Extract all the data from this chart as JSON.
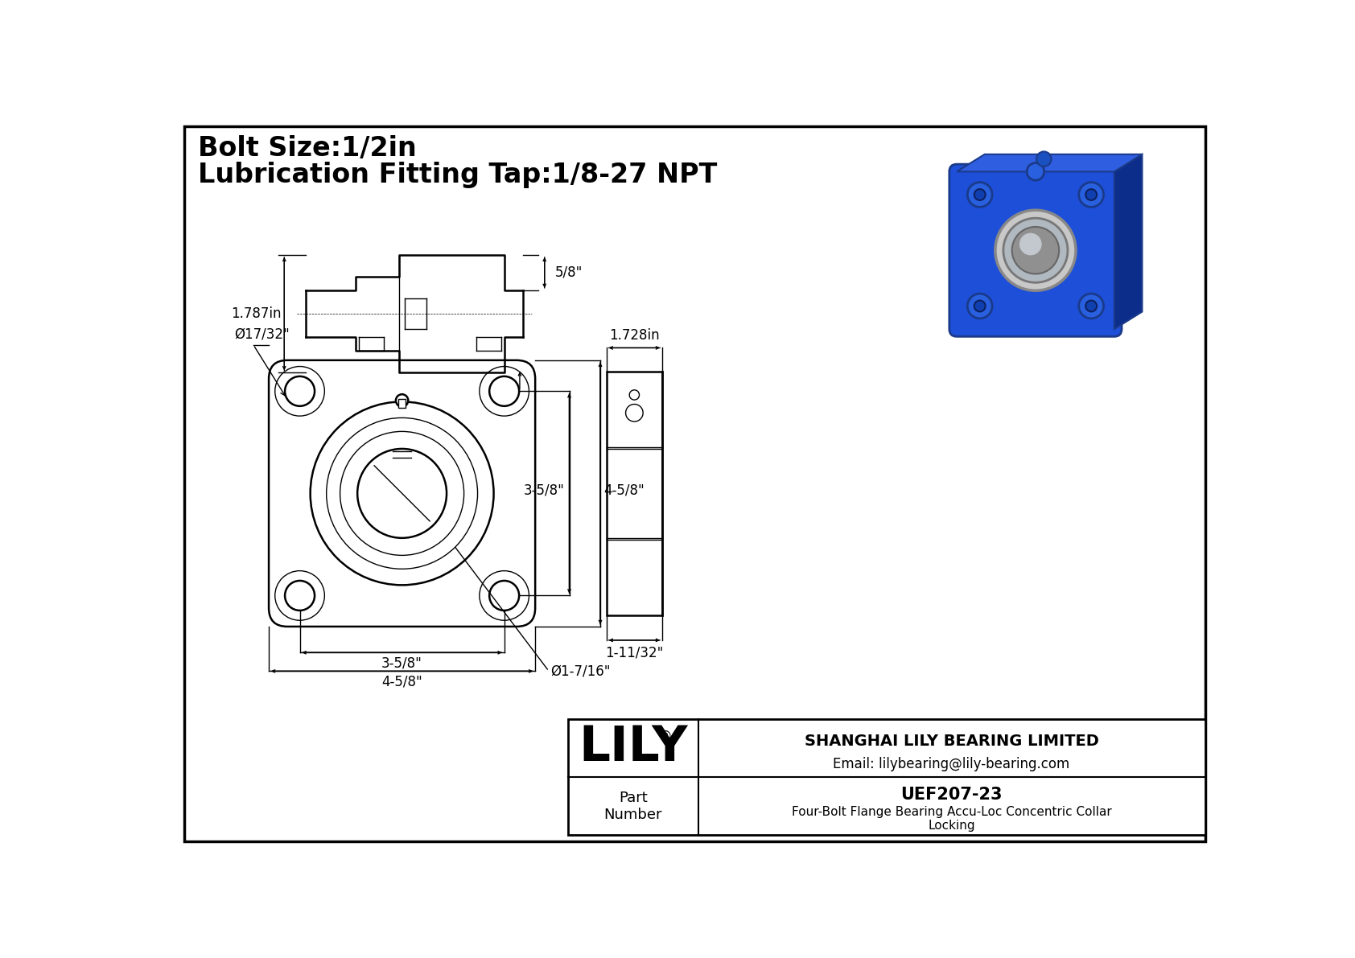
{
  "title_line1": "Bolt Size:1/2in",
  "title_line2": "Lubrication Fitting Tap:1/8-27 NPT",
  "background_color": "#ffffff",
  "line_color": "#000000",
  "company_name": "SHANGHAI LILY BEARING LIMITED",
  "company_email": "Email: lilybearing@lily-bearing.com",
  "part_label": "Part\nNumber",
  "part_number": "UEF207-23",
  "part_description": "Four-Bolt Flange Bearing Accu-Loc Concentric Collar\nLocking",
  "lily_logo": "LILY",
  "dim_bolt_hole": "Ø17/32\"",
  "dim_bore": "Ø1-7/16\"",
  "dim_height1": "3-5/8\"",
  "dim_height2": "4-5/8\"",
  "dim_width1": "3-5/8\"",
  "dim_width2": "4-5/8\"",
  "dim_side_width": "1.728in",
  "dim_side_depth": "1-11/32\"",
  "dim_front_height": "1.787in",
  "dim_shaft_ext": "5/8\""
}
